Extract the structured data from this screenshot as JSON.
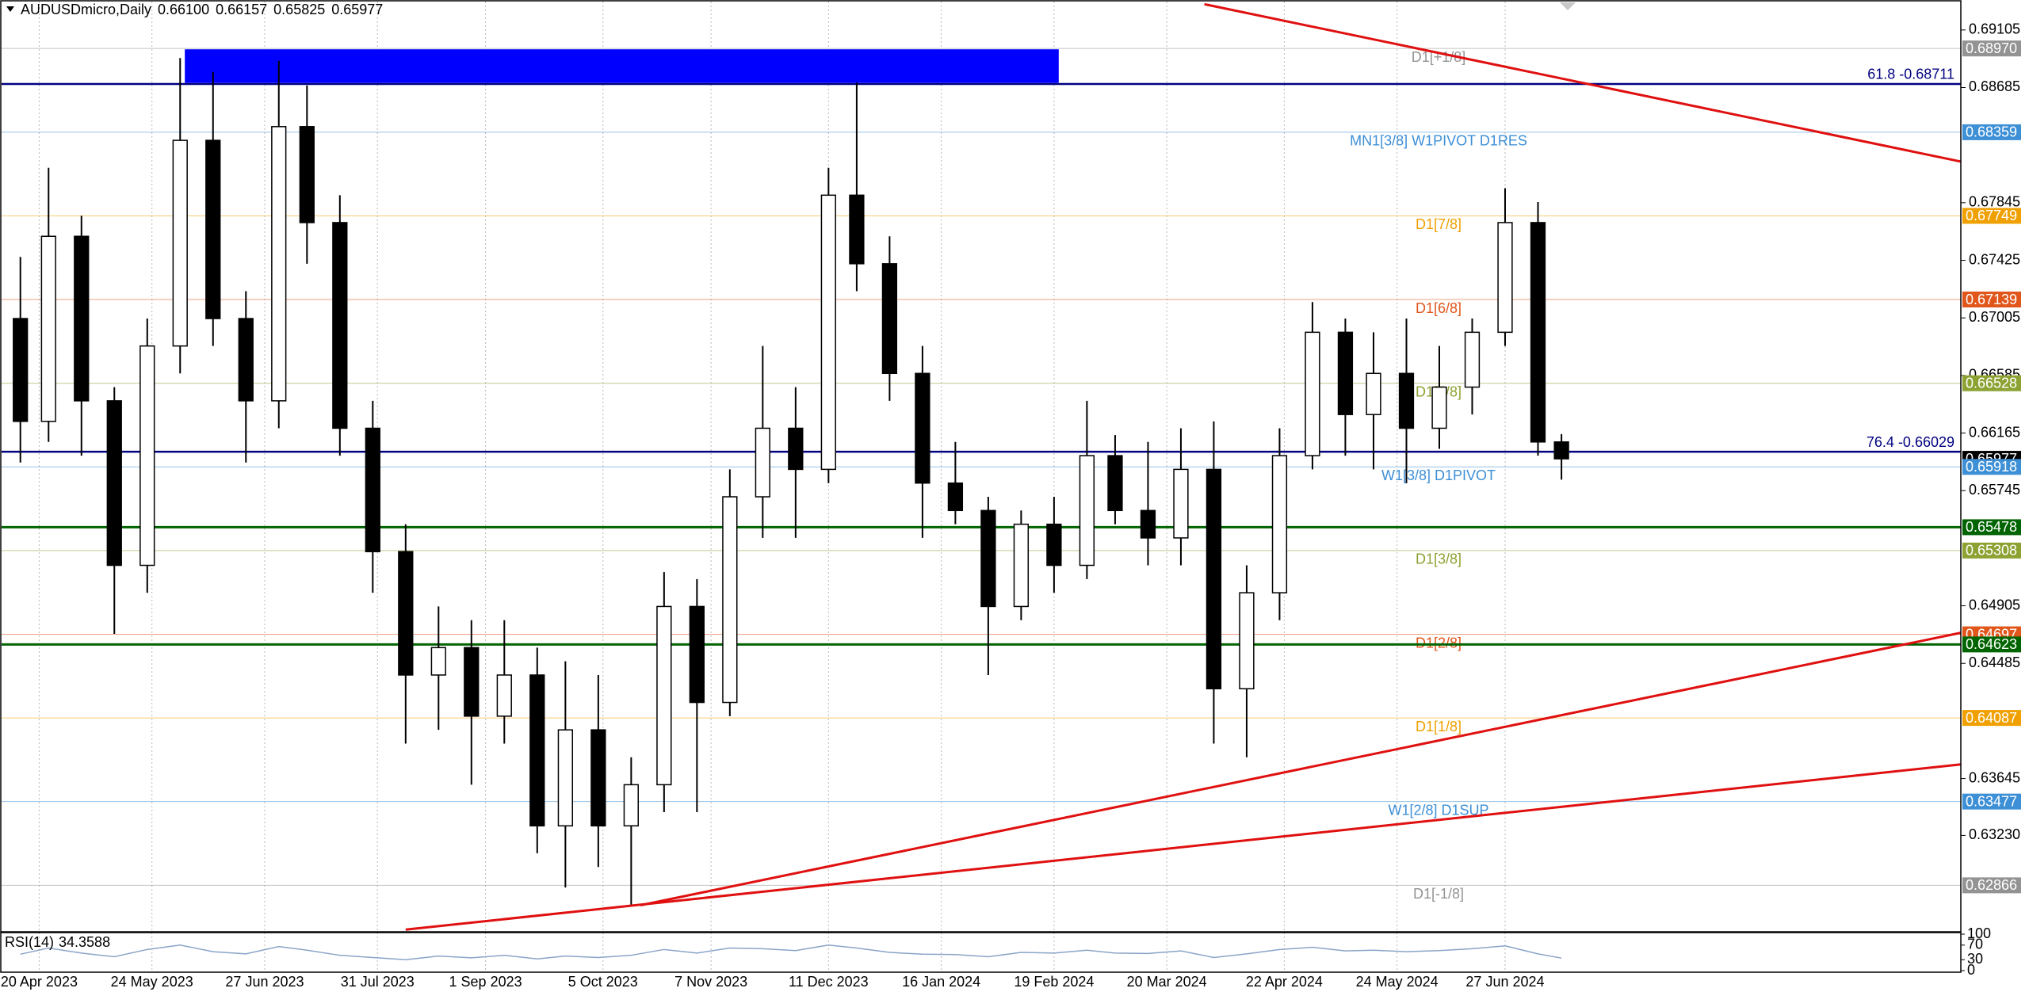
{
  "chart_data": {
    "type": "candlestick",
    "title": "AUDUSDmicro,Daily",
    "ohlc_labels": [
      "0.66100",
      "0.66157",
      "0.65825",
      "0.65977"
    ],
    "x": [
      4,
      10,
      17,
      24,
      31,
      38,
      45,
      52,
      59,
      65,
      72,
      79,
      86,
      93,
      100,
      107,
      114,
      120,
      127,
      134,
      141,
      148,
      155,
      162,
      169,
      176,
      182,
      189,
      196,
      203,
      210,
      217,
      224,
      231,
      237,
      244,
      251,
      258,
      265,
      272,
      279,
      286,
      292,
      299,
      306,
      313,
      320,
      327,
      332
    ],
    "open": [
      0.67,
      0.6625,
      0.676,
      0.664,
      0.652,
      0.668,
      0.683,
      0.67,
      0.664,
      0.684,
      0.677,
      0.662,
      0.653,
      0.644,
      0.646,
      0.641,
      0.644,
      0.633,
      0.64,
      0.633,
      0.636,
      0.649,
      0.642,
      0.657,
      0.662,
      0.659,
      0.679,
      0.674,
      0.666,
      0.658,
      0.656,
      0.649,
      0.655,
      0.652,
      0.66,
      0.656,
      0.654,
      0.659,
      0.643,
      0.65,
      0.66,
      0.669,
      0.663,
      0.666,
      0.662,
      0.665,
      0.669,
      0.677,
      0.661
    ],
    "high": [
      0.6745,
      0.681,
      0.6775,
      0.665,
      0.67,
      0.689,
      0.688,
      0.672,
      0.6888,
      0.687,
      0.679,
      0.664,
      0.655,
      0.649,
      0.648,
      0.648,
      0.646,
      0.645,
      0.644,
      0.638,
      0.6515,
      0.651,
      0.659,
      0.668,
      0.665,
      0.681,
      0.6872,
      0.676,
      0.668,
      0.661,
      0.657,
      0.656,
      0.657,
      0.664,
      0.6615,
      0.661,
      0.662,
      0.6625,
      0.652,
      0.662,
      0.6712,
      0.67,
      0.669,
      0.67,
      0.668,
      0.67,
      0.6795,
      0.6785,
      0.66157
    ],
    "low": [
      0.6595,
      0.661,
      0.66,
      0.647,
      0.65,
      0.666,
      0.668,
      0.6595,
      0.662,
      0.674,
      0.66,
      0.65,
      0.639,
      0.64,
      0.636,
      0.639,
      0.631,
      0.6285,
      0.63,
      0.6272,
      0.634,
      0.634,
      0.641,
      0.654,
      0.654,
      0.658,
      0.672,
      0.664,
      0.654,
      0.655,
      0.644,
      0.648,
      0.65,
      0.651,
      0.655,
      0.652,
      0.652,
      0.639,
      0.638,
      0.648,
      0.659,
      0.66,
      0.659,
      0.658,
      0.6605,
      0.663,
      0.668,
      0.66,
      0.65825
    ],
    "close": [
      0.6625,
      0.676,
      0.664,
      0.652,
      0.668,
      0.683,
      0.67,
      0.664,
      0.684,
      0.677,
      0.662,
      0.653,
      0.644,
      0.646,
      0.641,
      0.644,
      0.633,
      0.64,
      0.633,
      0.636,
      0.649,
      0.642,
      0.657,
      0.662,
      0.659,
      0.679,
      0.674,
      0.666,
      0.658,
      0.656,
      0.649,
      0.655,
      0.652,
      0.66,
      0.656,
      0.654,
      0.659,
      0.643,
      0.65,
      0.66,
      0.669,
      0.663,
      0.666,
      0.662,
      0.665,
      0.669,
      0.677,
      0.661,
      0.65977
    ],
    "xlim": [
      0,
      417
    ],
    "xticks": [
      {
        "value": 8,
        "label": "20 Apr 2023"
      },
      {
        "value": 32,
        "label": "24 May 2023"
      },
      {
        "value": 56,
        "label": "27 Jun 2023"
      },
      {
        "value": 80,
        "label": "31 Jul 2023"
      },
      {
        "value": 103,
        "label": "1 Sep 2023"
      },
      {
        "value": 128,
        "label": "5 Oct 2023"
      },
      {
        "value": 151,
        "label": "7 Nov 2023"
      },
      {
        "value": 176,
        "label": "11 Dec 2023"
      },
      {
        "value": 200,
        "label": "16 Jan 2024"
      },
      {
        "value": 224,
        "label": "19 Feb 2024"
      },
      {
        "value": 248,
        "label": "20 Mar 2024"
      },
      {
        "value": 273,
        "label": "22 Apr 2024"
      },
      {
        "value": 297,
        "label": "24 May 2024"
      },
      {
        "value": 320,
        "label": "27 Jun 2024"
      }
    ],
    "ylim": [
      0.62533,
      0.69312
    ],
    "yticks": [
      0.69105,
      0.68685,
      0.67845,
      0.67425,
      0.67005,
      0.66585,
      0.66165,
      0.65745,
      0.64905,
      0.64485,
      0.63645,
      {
        "value": 0.6323,
        "label": "0.63230"
      }
    ],
    "grid": "x",
    "levels": [
      {
        "value": 0.6897,
        "value_label": "0.68970",
        "text": "D1[+1/8]",
        "color": "#939393",
        "kind": "murrey"
      },
      {
        "value": 0.68711,
        "text": "61.8 -0.68711",
        "color": "#000080",
        "kind": "fib"
      },
      {
        "value": 0.68359,
        "value_label": "0.68359",
        "text": "MN1[3/8] W1PIVOT D1RES",
        "color": "#3d8fd6",
        "kind": "murrey"
      },
      {
        "value": 0.67749,
        "value_label": "0.67749",
        "text": "D1[7/8]",
        "color": "#f0a000",
        "kind": "murrey"
      },
      {
        "value": 0.67139,
        "value_label": "0.67139",
        "text": "D1[6/8]",
        "color": "#e0561b",
        "kind": "murrey"
      },
      {
        "value": 0.66528,
        "value_label": "0.66528",
        "text": "D1[5/8]",
        "color": "#8ca232",
        "kind": "murrey"
      },
      {
        "value": 0.66029,
        "text": "76.4 -0.66029",
        "color": "#000080",
        "kind": "fib"
      },
      {
        "value": 0.65977,
        "value_label": "0.65977",
        "color": "#000000",
        "kind": "price"
      },
      {
        "value": 0.65918,
        "value_label": "0.65918",
        "text": "W1[3/8] D1PIVOT",
        "color": "#3d8fd6",
        "kind": "murrey"
      },
      {
        "value": 0.65478,
        "value_label": "0.65478",
        "color": "#006400",
        "kind": "bold"
      },
      {
        "value": 0.65308,
        "value_label": "0.65308",
        "text": "D1[3/8]",
        "color": "#8ca232",
        "kind": "murrey"
      },
      {
        "value": 0.64697,
        "value_label": "0.64697",
        "text": "D1[2/8]",
        "color": "#e0561b",
        "kind": "murrey"
      },
      {
        "value": 0.64623,
        "value_label": "0.64623",
        "color": "#006400",
        "kind": "bold"
      },
      {
        "value": 0.64087,
        "value_label": "0.64087",
        "text": "D1[1/8]",
        "color": "#f0a000",
        "kind": "murrey"
      },
      {
        "value": 0.63477,
        "value_label": "0.63477",
        "text": "W1[2/8] D1SUP",
        "color": "#3d8fd6",
        "kind": "murrey"
      },
      {
        "value": 0.62866,
        "value_label": "0.62866",
        "text": "D1[-1/8]",
        "color": "#939393",
        "kind": "murrey"
      }
    ],
    "zones": [
      {
        "x": [
          39,
          225
        ],
        "y": [
          0.68719,
          0.68964
        ],
        "color": "#0000ff"
      }
    ],
    "trendlines": [
      {
        "x": [
          256,
          417
        ],
        "y": [
          0.69293,
          0.68145
        ],
        "color": "#e01010"
      },
      {
        "x": [
          86,
          417
        ],
        "y": [
          0.62543,
          0.63748
        ],
        "color": "#e01010"
      },
      {
        "x": [
          136,
          417
        ],
        "y": [
          0.62721,
          0.64708
        ],
        "color": "#e01010"
      }
    ],
    "rsi": {
      "name": "RSI(14)",
      "color": "#8aa4c8",
      "ylim": [
        0,
        100
      ],
      "yticks": [
        100,
        70,
        30,
        0
      ],
      "values": [
        45,
        62,
        48,
        38,
        58,
        70,
        52,
        46,
        66,
        56,
        42,
        36,
        30,
        40,
        35,
        42,
        32,
        40,
        36,
        42,
        58,
        48,
        62,
        60,
        55,
        70,
        62,
        50,
        45,
        44,
        38,
        50,
        48,
        56,
        48,
        47,
        54,
        36,
        46,
        58,
        64,
        54,
        56,
        52,
        55,
        60,
        68,
        46,
        34.3588
      ]
    }
  }
}
